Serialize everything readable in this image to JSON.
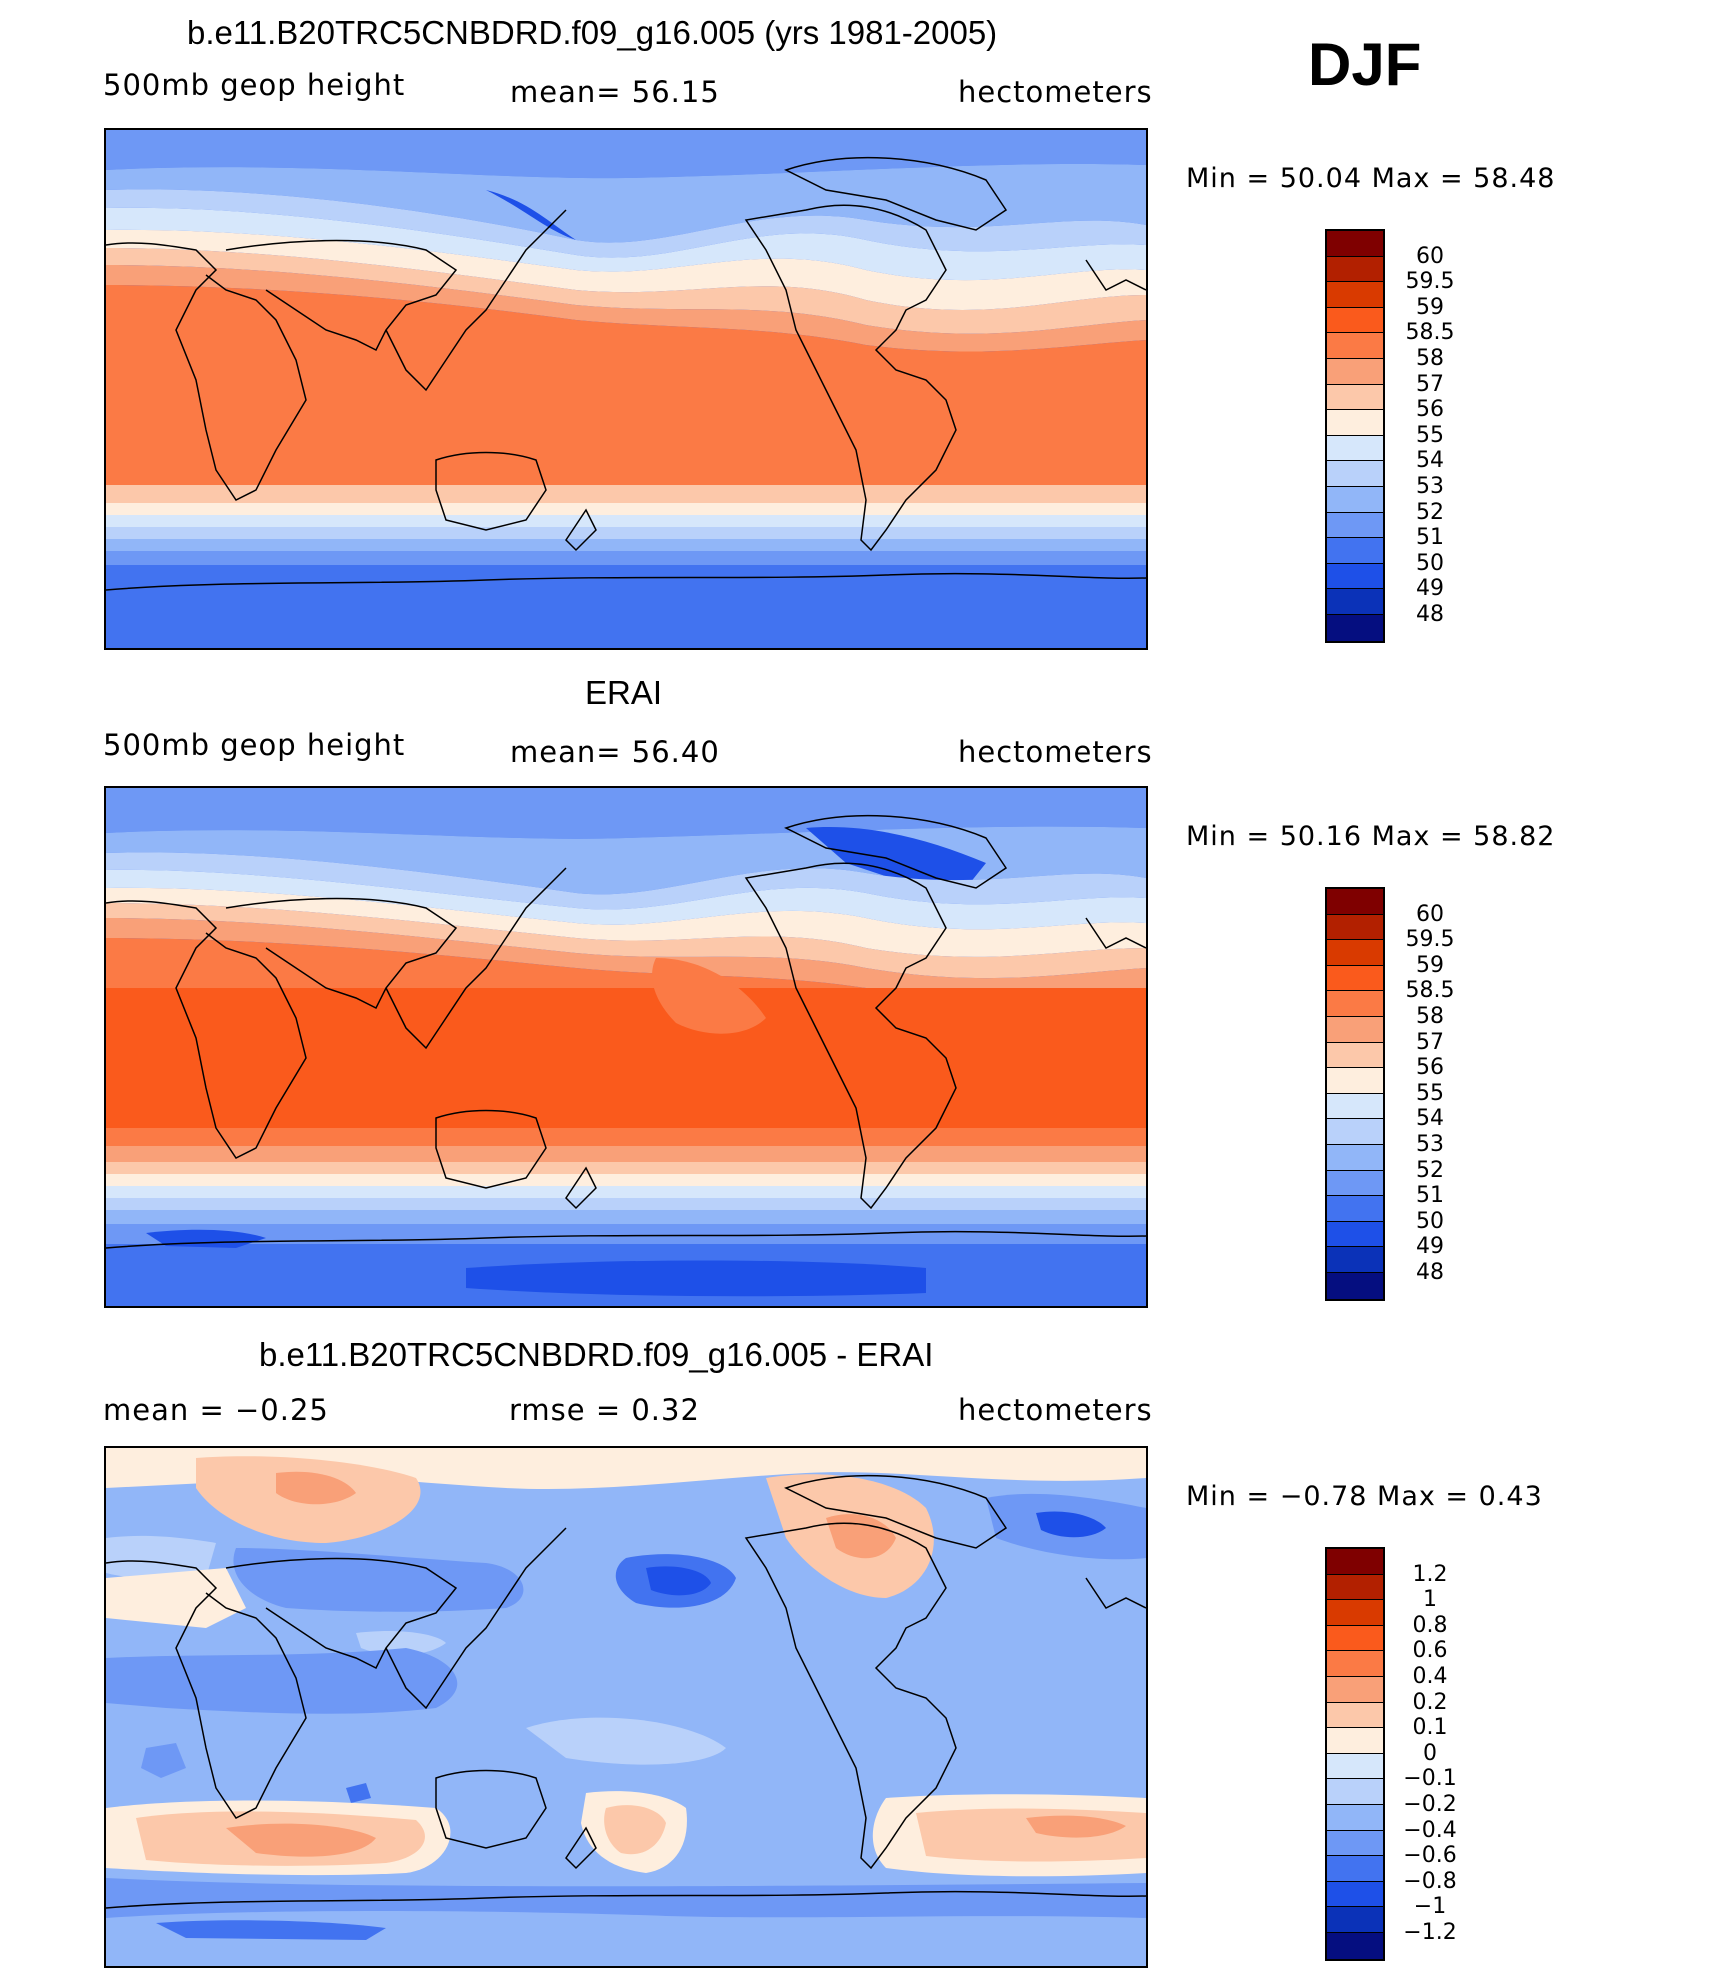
{
  "season": "DJF",
  "panels": [
    {
      "title": "b.e11.B20TRC5CNBDRD.f09_g16.005 (yrs 1981-2005)",
      "left_label": "500mb  geop  height",
      "center_label": "mean=   56.15",
      "units": "hectometers",
      "min_max": "Min  =    50.04  Max  =    58.48",
      "colorbar_labels": [
        "60",
        "59.5",
        "59",
        "58.5",
        "58",
        "57",
        "56",
        "55",
        "54",
        "53",
        "52",
        "51",
        "50",
        "49",
        "48"
      ]
    },
    {
      "title": "ERAI",
      "left_label": "500mb  geop  height",
      "center_label": "mean=   56.40",
      "units": "hectometers",
      "min_max": "Min  =    50.16  Max  =    58.82",
      "colorbar_labels": [
        "60",
        "59.5",
        "59",
        "58.5",
        "58",
        "57",
        "56",
        "55",
        "54",
        "53",
        "52",
        "51",
        "50",
        "49",
        "48"
      ]
    },
    {
      "title": "b.e11.B20TRC5CNBDRD.f09_g16.005 - ERAI",
      "left_label": "mean  =    −0.25",
      "center_label": "rmse  =     0.32",
      "units": "hectometers",
      "min_max": "Min  =   −0.78  Max  =     0.43",
      "colorbar_labels": [
        "1.2",
        "1",
        "0.8",
        "0.6",
        "0.4",
        "0.2",
        "0.1",
        "0",
        "−0.1",
        "−0.2",
        "−0.4",
        "−0.6",
        "−0.8",
        "−1",
        "−1.2"
      ]
    }
  ],
  "colors": {
    "scale16": [
      "#7f0000",
      "#b22000",
      "#d93a00",
      "#fa5a1c",
      "#fb7a45",
      "#f9a078",
      "#fcc8aa",
      "#feeede",
      "#d6e7fb",
      "#b9d1fa",
      "#91b6f8",
      "#6e98f5",
      "#4273f0",
      "#1e50e8",
      "#0b32b8",
      "#050e80"
    ]
  },
  "chart_data": [
    {
      "type": "heatmap",
      "title": "b.e11.B20TRC5CNBDRD.f09_g16.005 (yrs 1981-2005)",
      "field": "500mb geop height",
      "units": "hectometers",
      "mean": 56.15,
      "min": 50.04,
      "max": 58.48,
      "levels": [
        48,
        49,
        50,
        51,
        52,
        53,
        54,
        55,
        56,
        57,
        58,
        58.5,
        59,
        59.5,
        60
      ]
    },
    {
      "type": "heatmap",
      "title": "ERAI",
      "field": "500mb geop height",
      "units": "hectometers",
      "mean": 56.4,
      "min": 50.16,
      "max": 58.82,
      "levels": [
        48,
        49,
        50,
        51,
        52,
        53,
        54,
        55,
        56,
        57,
        58,
        58.5,
        59,
        59.5,
        60
      ]
    },
    {
      "type": "heatmap",
      "title": "b.e11.B20TRC5CNBDRD.f09_g16.005 - ERAI",
      "units": "hectometers",
      "mean": -0.25,
      "rmse": 0.32,
      "min": -0.78,
      "max": 0.43,
      "levels": [
        -1.2,
        -1,
        -0.8,
        -0.6,
        -0.4,
        -0.2,
        -0.1,
        0,
        0.1,
        0.2,
        0.4,
        0.6,
        0.8,
        1,
        1.2
      ]
    }
  ]
}
